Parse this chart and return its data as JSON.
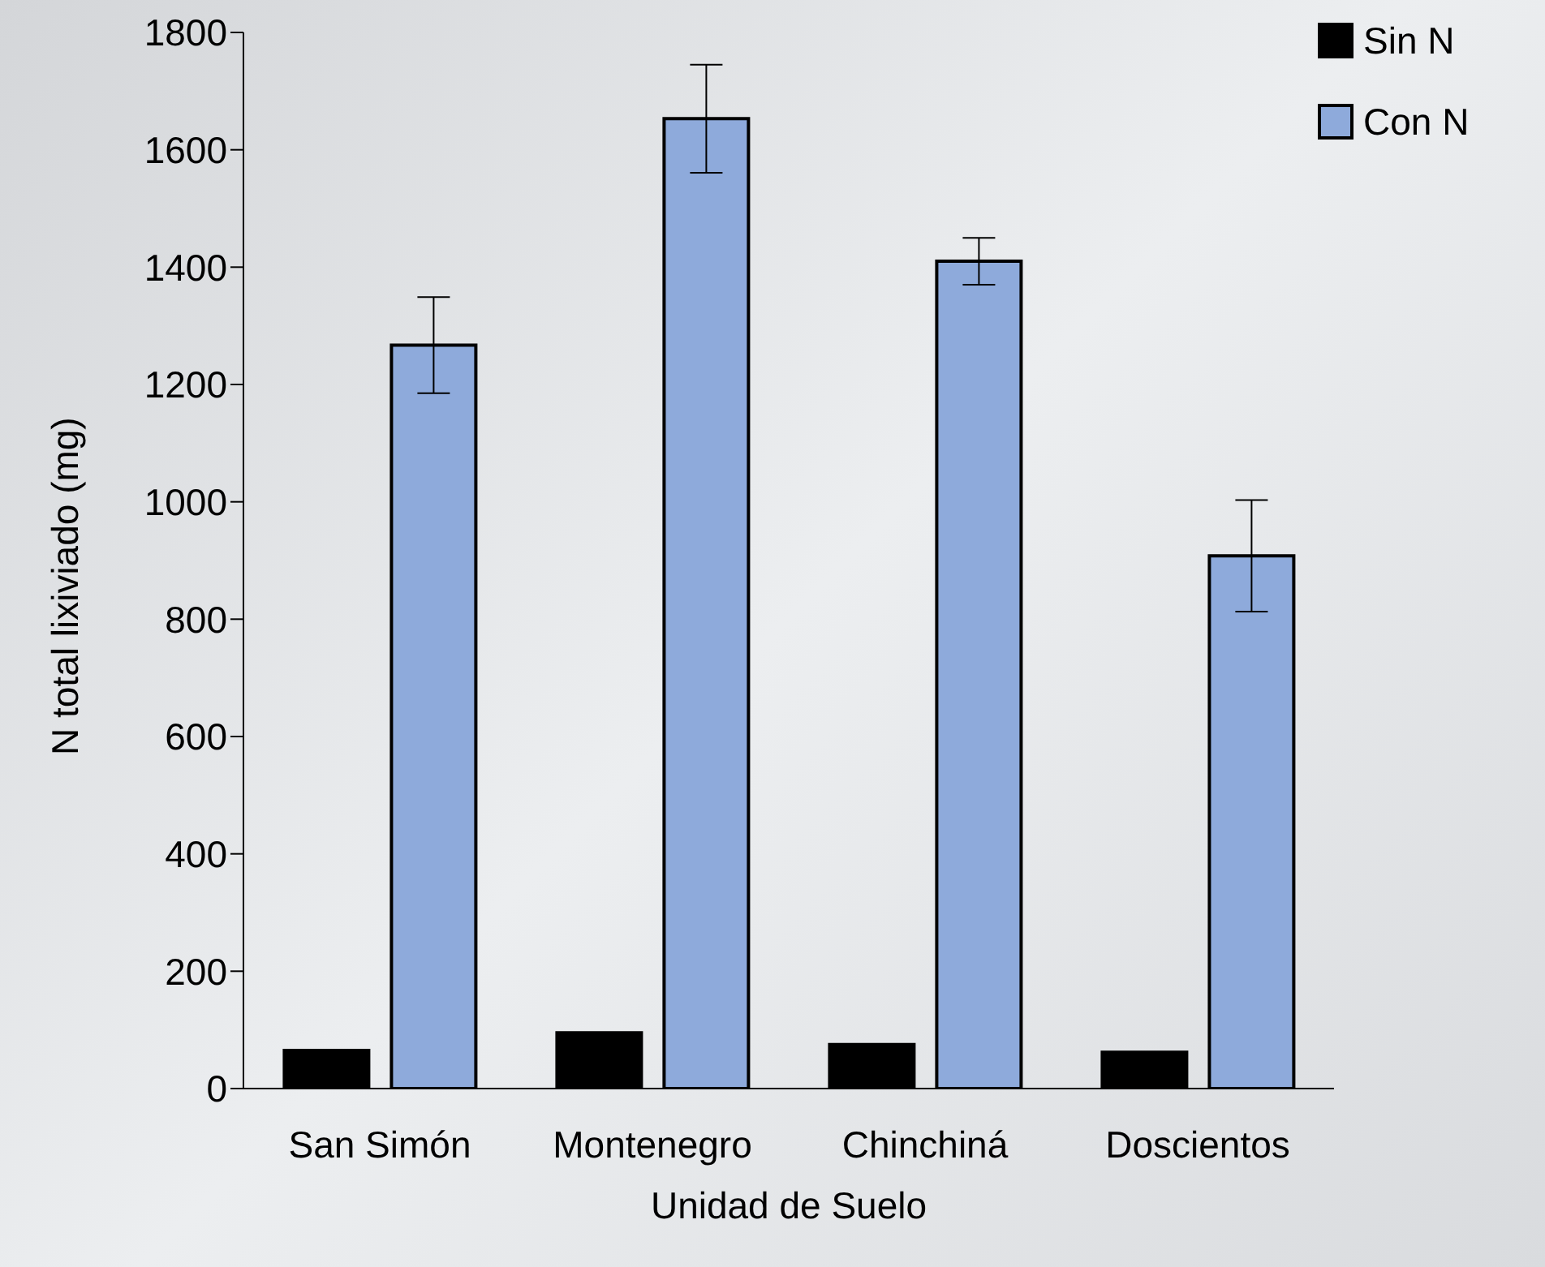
{
  "chart_data": {
    "type": "bar",
    "xlabel": "Unidad de Suelo",
    "ylabel": "N total lixiviado (mg)",
    "categories": [
      "San Simón",
      "Montenegro",
      "Chinchiná",
      "Doscientos"
    ],
    "series": [
      {
        "name": "Sin N",
        "color": "#000000",
        "values": [
          65,
          95,
          75,
          62
        ]
      },
      {
        "name": "Con N",
        "color": "#8eaadb",
        "values": [
          1267,
          1653,
          1410,
          908
        ],
        "errors": [
          82,
          92,
          40,
          95
        ]
      }
    ],
    "ylim": [
      0,
      1800
    ],
    "yticks": [
      0,
      200,
      400,
      600,
      800,
      1000,
      1200,
      1400,
      1600,
      1800
    ],
    "grid": false,
    "legend": "top right"
  }
}
